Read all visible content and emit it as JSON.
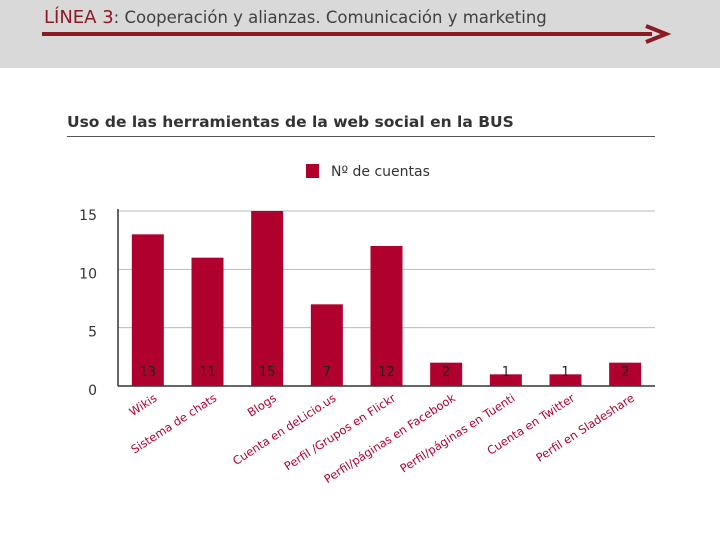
{
  "header": {
    "line_label": "LÍNEA 3",
    "subtitle": ": Cooperación y alianzas. Comunicación y marketing"
  },
  "colors": {
    "bar": "#b0002e",
    "header_bg": "#d9d9d9",
    "accent": "#8b1a24"
  },
  "chart_data": {
    "type": "bar",
    "title": "Uso de las herramientas de la web social en la BUS",
    "legend": [
      "Nº de cuentas"
    ],
    "legend_position": "top-center",
    "xlabel": "",
    "ylabel": "",
    "ylim": [
      0,
      15
    ],
    "yticks": [
      "0",
      "5",
      "10",
      "15"
    ],
    "grid": true,
    "categories": [
      "Wikis",
      "Sistema de chats",
      "Blogs",
      "Cuenta en deLicio.us",
      "Perfil /Grupos en Flickr",
      "Perfil/páginas en Facebook",
      "Perfil/páginas en Tuenti",
      "Cuenta en Twitter",
      "Perfil en Sladeshare"
    ],
    "series": [
      {
        "name": "Nº de cuentas",
        "values": [
          13,
          11,
          15,
          7,
          12,
          2,
          1,
          1,
          2
        ]
      }
    ],
    "data_labels": [
      "13",
      "11",
      "15",
      "7",
      "12",
      "2",
      "1",
      "1",
      "2"
    ]
  }
}
